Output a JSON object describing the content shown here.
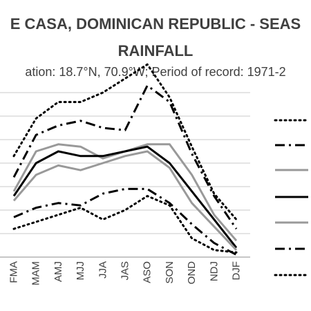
{
  "title_line1": "E CASA, DOMINICAN REPUBLIC - SEAS",
  "title_line2": "RAINFALL",
  "subtitle": "ation: 18.7°N, 70.9°W; Period of record: 1971-2",
  "chart_data": {
    "type": "line",
    "categories": [
      "FMA",
      "MAM",
      "AMJ",
      "MJJ",
      "JJA",
      "JAS",
      "ASO",
      "SON",
      "OND",
      "NDJ",
      "DJF"
    ],
    "ylim": [
      0,
      10
    ],
    "grid": true,
    "legend_position": "right",
    "series": [
      {
        "style": "dotted",
        "color": "#000000",
        "values": [
          4.3,
          5.9,
          6.6,
          6.6,
          7.0,
          7.6,
          8.2,
          6.8,
          4.7,
          2.7,
          1.6
        ]
      },
      {
        "style": "dashdot",
        "color": "#000000",
        "values": [
          3.4,
          5.2,
          5.6,
          5.8,
          5.5,
          5.4,
          7.3,
          6.6,
          4.4,
          2.6,
          1.2
        ]
      },
      {
        "style": "solid",
        "color": "#999999",
        "values": [
          2.8,
          4.5,
          4.8,
          4.7,
          4.2,
          4.5,
          4.8,
          4.8,
          3.5,
          1.8,
          0.7
        ]
      },
      {
        "style": "solid",
        "color": "#000000",
        "values": [
          2.6,
          4.0,
          4.5,
          4.3,
          4.3,
          4.5,
          4.7,
          4.0,
          2.8,
          1.6,
          0.4
        ]
      },
      {
        "style": "solid",
        "color": "#999999",
        "values": [
          2.4,
          3.5,
          3.9,
          3.7,
          4.0,
          4.3,
          4.5,
          3.8,
          2.3,
          1.3,
          0.3
        ]
      },
      {
        "style": "dashdot",
        "color": "#000000",
        "values": [
          1.7,
          2.1,
          2.3,
          2.2,
          2.7,
          2.9,
          2.9,
          2.3,
          1.4,
          0.6,
          0.1
        ]
      },
      {
        "style": "dotted",
        "color": "#000000",
        "values": [
          1.2,
          1.5,
          1.8,
          2.1,
          1.6,
          2.0,
          2.6,
          2.2,
          0.8,
          0.3,
          0.2
        ]
      }
    ]
  }
}
